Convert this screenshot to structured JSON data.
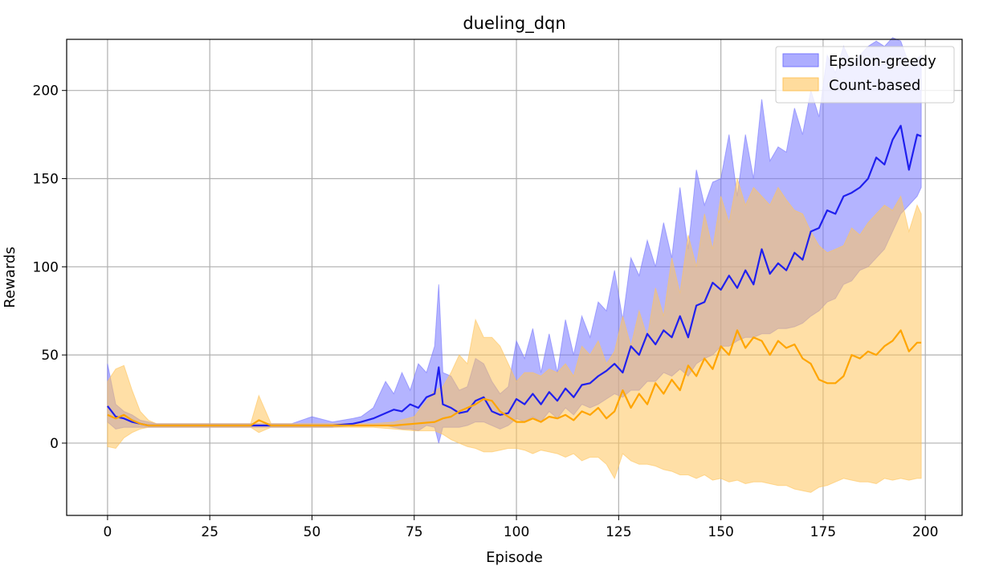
{
  "chart_data": {
    "type": "line",
    "title": "dueling_dqn",
    "xlabel": "Episode",
    "ylabel": "Rewards",
    "xlim": [
      -10,
      209
    ],
    "ylim": [
      -41,
      229
    ],
    "xticks": [
      0,
      25,
      50,
      75,
      100,
      125,
      150,
      175,
      200
    ],
    "yticks": [
      0,
      50,
      100,
      150,
      200
    ],
    "grid": true,
    "legend_position": "top-right",
    "series": [
      {
        "name": "Epsilon-greedy",
        "line_color": "#2020ee",
        "band_color": "#7777ff",
        "x": [
          0,
          2,
          4,
          6,
          8,
          10,
          12,
          14,
          16,
          18,
          20,
          25,
          30,
          35,
          40,
          45,
          50,
          55,
          60,
          62,
          65,
          68,
          70,
          72,
          74,
          76,
          78,
          80,
          81,
          82,
          84,
          86,
          88,
          90,
          92,
          94,
          96,
          98,
          100,
          102,
          104,
          106,
          108,
          110,
          112,
          114,
          116,
          118,
          120,
          122,
          124,
          126,
          128,
          130,
          132,
          134,
          136,
          138,
          140,
          142,
          144,
          146,
          148,
          150,
          152,
          154,
          156,
          158,
          160,
          162,
          164,
          166,
          168,
          170,
          172,
          174,
          176,
          178,
          180,
          182,
          184,
          186,
          188,
          190,
          192,
          194,
          196,
          198,
          199
        ],
        "mean": [
          21,
          15,
          14,
          12,
          11,
          10,
          10,
          10,
          10,
          10,
          10,
          10,
          10,
          10,
          10,
          10,
          10,
          10,
          11,
          12,
          14,
          17,
          19,
          18,
          22,
          20,
          26,
          28,
          43,
          22,
          20,
          17,
          18,
          24,
          26,
          18,
          16,
          17,
          25,
          22,
          28,
          22,
          29,
          24,
          31,
          26,
          33,
          34,
          38,
          41,
          45,
          40,
          55,
          50,
          62,
          56,
          64,
          60,
          72,
          60,
          78,
          80,
          91,
          87,
          95,
          88,
          98,
          90,
          110,
          96,
          102,
          98,
          108,
          104,
          120,
          122,
          132,
          130,
          140,
          142,
          145,
          150,
          162,
          158,
          172,
          180,
          155,
          175,
          174
        ],
        "lower": [
          12,
          8,
          9,
          9,
          9,
          9,
          9,
          9,
          9,
          9,
          9,
          9,
          9,
          9,
          9,
          9,
          9,
          9,
          10,
          10,
          10,
          10,
          9,
          8,
          8,
          7,
          10,
          9,
          0,
          9,
          9,
          9,
          10,
          12,
          12,
          10,
          8,
          10,
          14,
          12,
          15,
          12,
          18,
          14,
          20,
          16,
          22,
          20,
          22,
          25,
          28,
          26,
          30,
          30,
          35,
          35,
          40,
          38,
          42,
          38,
          45,
          48,
          50,
          55,
          55,
          58,
          60,
          60,
          62,
          62,
          65,
          65,
          66,
          68,
          72,
          75,
          80,
          82,
          90,
          92,
          98,
          100,
          105,
          110,
          120,
          130,
          135,
          140,
          145
        ],
        "upper": [
          45,
          22,
          18,
          16,
          13,
          12,
          11,
          11,
          11,
          11,
          11,
          11,
          11,
          11,
          11,
          11,
          15,
          12,
          14,
          15,
          20,
          35,
          28,
          40,
          30,
          45,
          40,
          55,
          90,
          40,
          38,
          30,
          32,
          48,
          45,
          35,
          28,
          32,
          58,
          48,
          65,
          40,
          62,
          40,
          70,
          50,
          72,
          60,
          80,
          75,
          98,
          70,
          105,
          95,
          115,
          100,
          125,
          105,
          145,
          110,
          155,
          135,
          148,
          150,
          175,
          140,
          175,
          150,
          195,
          160,
          168,
          165,
          190,
          175,
          200,
          185,
          220,
          210,
          225,
          215,
          220,
          225,
          228,
          225,
          230,
          228,
          215,
          218,
          220
        ]
      },
      {
        "name": "Count-based",
        "line_color": "#ffa500",
        "band_color": "#ffc55c",
        "x": [
          0,
          2,
          4,
          6,
          8,
          10,
          12,
          14,
          16,
          18,
          20,
          25,
          30,
          35,
          37,
          40,
          45,
          50,
          55,
          60,
          65,
          70,
          75,
          80,
          82,
          84,
          86,
          88,
          90,
          92,
          94,
          96,
          98,
          100,
          102,
          104,
          106,
          108,
          110,
          112,
          114,
          116,
          118,
          120,
          122,
          124,
          126,
          128,
          130,
          132,
          134,
          136,
          138,
          140,
          142,
          144,
          146,
          148,
          150,
          152,
          154,
          156,
          158,
          160,
          162,
          164,
          166,
          168,
          170,
          172,
          174,
          176,
          178,
          180,
          182,
          184,
          186,
          188,
          190,
          192,
          194,
          196,
          198,
          199
        ],
        "mean": [
          16,
          14,
          16,
          13,
          11,
          10,
          10,
          10,
          10,
          10,
          10,
          10,
          10,
          10,
          13,
          10,
          10,
          10,
          10,
          10,
          10,
          10,
          11,
          12,
          14,
          15,
          18,
          20,
          22,
          25,
          24,
          18,
          15,
          12,
          12,
          14,
          12,
          15,
          14,
          16,
          13,
          18,
          16,
          20,
          14,
          18,
          30,
          20,
          28,
          22,
          34,
          28,
          36,
          30,
          44,
          38,
          48,
          42,
          55,
          50,
          64,
          54,
          60,
          58,
          50,
          58,
          54,
          56,
          48,
          45,
          36,
          34,
          34,
          38,
          50,
          48,
          52,
          50,
          55,
          58,
          64,
          52,
          57,
          57
        ],
        "lower": [
          -2,
          -3,
          3,
          6,
          8,
          9,
          9,
          9,
          9,
          9,
          9,
          9,
          9,
          9,
          6,
          9,
          9,
          9,
          9,
          9,
          9,
          8,
          7,
          7,
          5,
          2,
          0,
          -2,
          -3,
          -5,
          -5,
          -4,
          -3,
          -3,
          -4,
          -6,
          -4,
          -5,
          -6,
          -8,
          -6,
          -10,
          -8,
          -8,
          -12,
          -20,
          -6,
          -10,
          -12,
          -12,
          -13,
          -15,
          -16,
          -18,
          -18,
          -20,
          -18,
          -21,
          -20,
          -22,
          -21,
          -23,
          -22,
          -22,
          -23,
          -24,
          -24,
          -26,
          -27,
          -28,
          -25,
          -24,
          -22,
          -20,
          -21,
          -22,
          -22,
          -23,
          -20,
          -21,
          -20,
          -21,
          -20,
          -20
        ],
        "upper": [
          35,
          42,
          44,
          30,
          18,
          13,
          11,
          11,
          11,
          11,
          11,
          11,
          11,
          11,
          27,
          11,
          11,
          11,
          11,
          11,
          11,
          12,
          15,
          30,
          32,
          40,
          50,
          45,
          70,
          60,
          60,
          55,
          45,
          35,
          40,
          40,
          38,
          42,
          40,
          45,
          38,
          55,
          50,
          58,
          45,
          52,
          72,
          55,
          75,
          60,
          88,
          72,
          105,
          85,
          118,
          100,
          130,
          110,
          140,
          125,
          150,
          135,
          145,
          140,
          135,
          145,
          138,
          132,
          130,
          120,
          112,
          108,
          110,
          112,
          122,
          118,
          125,
          130,
          135,
          132,
          140,
          120,
          135,
          130
        ]
      }
    ]
  }
}
